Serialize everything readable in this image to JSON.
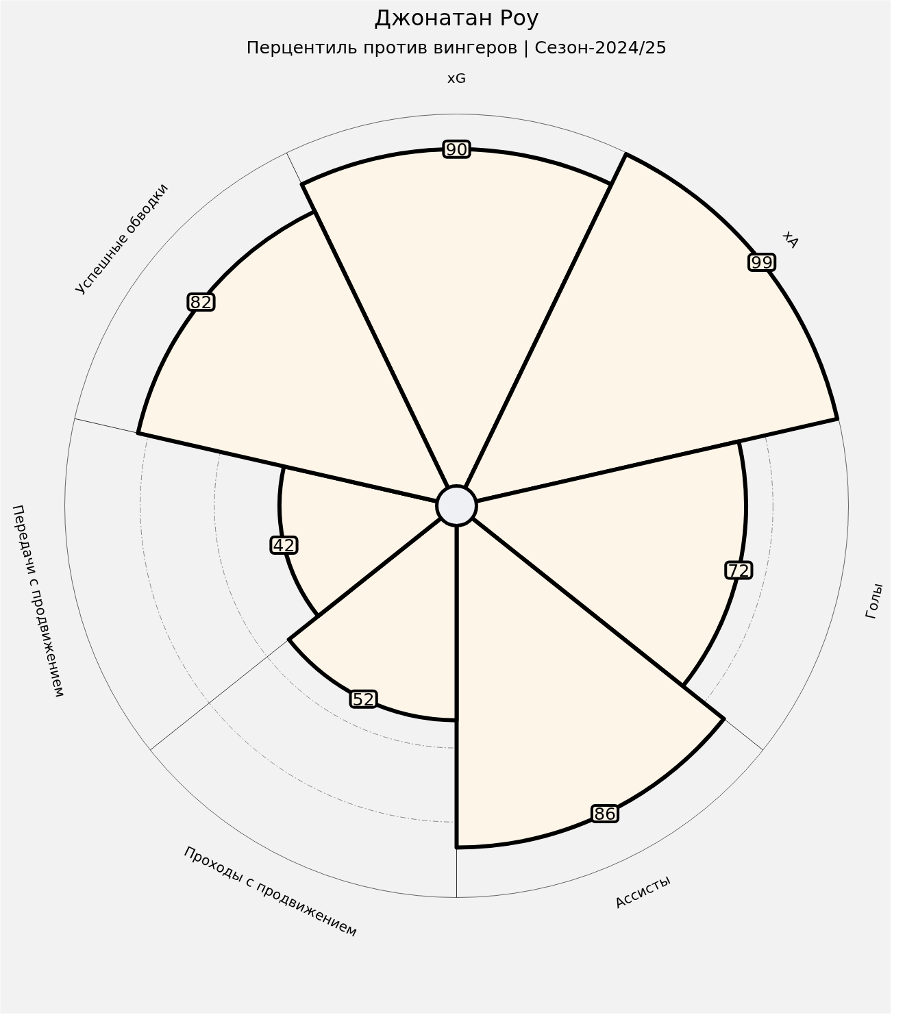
{
  "chart_data": {
    "type": "other",
    "title": "Джонатан Роу",
    "subtitle": "Перцентиль против вингеров | Сезон-2024/25",
    "categories": [
      "xG",
      "xA",
      "Голы",
      "Ассисты",
      "Проходы с продвижением",
      "Передачи с продвижением",
      "Успешные обводки"
    ],
    "series": [
      {
        "color": "#fcf5e8",
        "values": [
          90,
          99,
          72,
          86,
          52,
          42,
          82
        ],
        "value_labels": [
          "90",
          "99",
          "72",
          "86",
          "52",
          "42",
          "82"
        ]
      }
    ]
  }
}
